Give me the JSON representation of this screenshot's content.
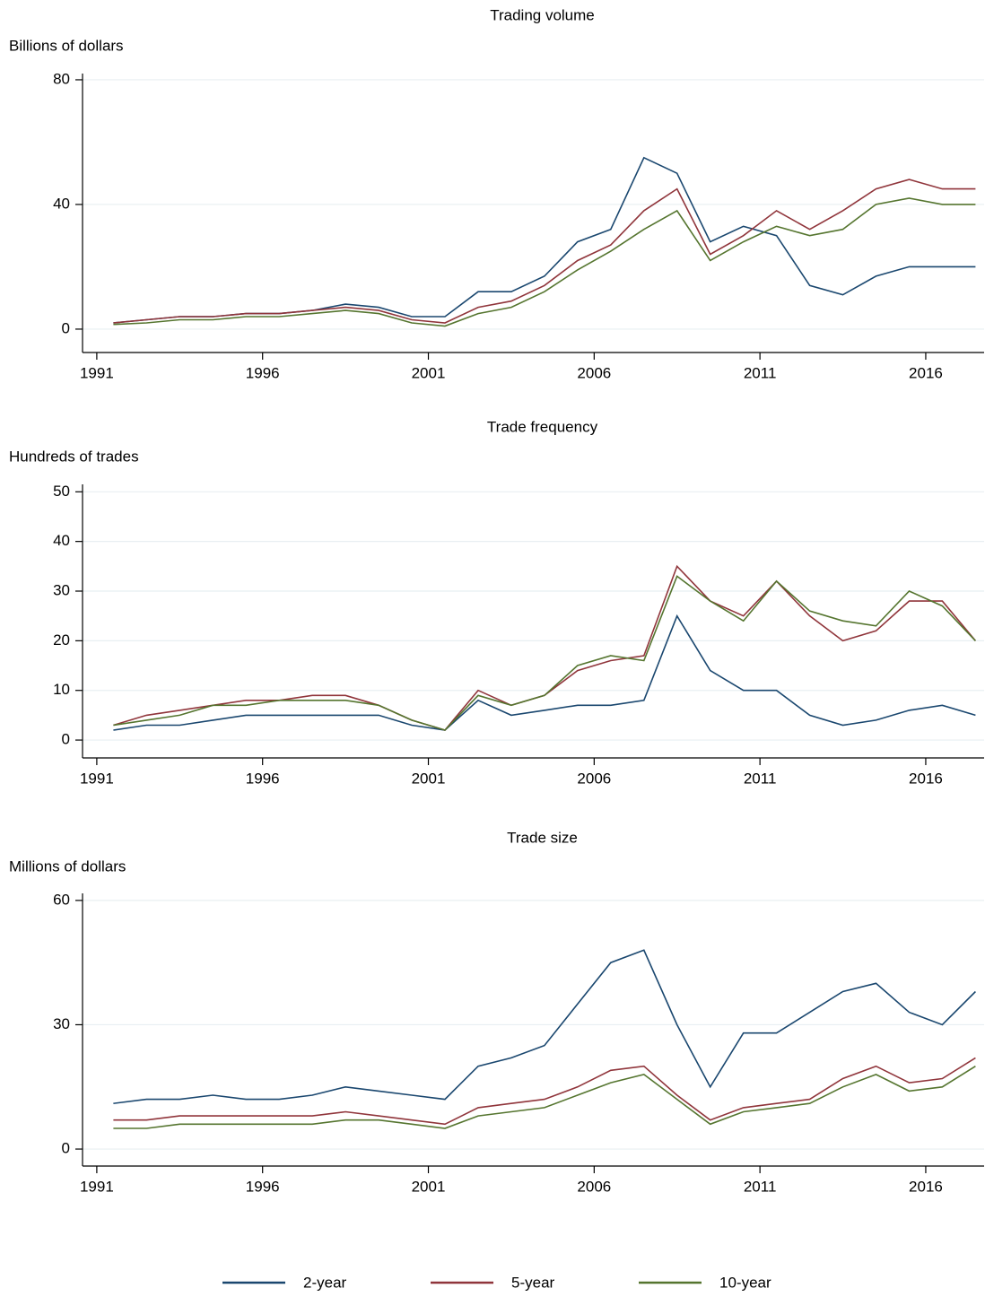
{
  "chart_data": [
    {
      "type": "line",
      "title": "Trading volume",
      "ylabel": "Billions of dollars",
      "x": [
        1991.5,
        1992.5,
        1993.5,
        1994.5,
        1995.5,
        1996.5,
        1997.5,
        1998.5,
        1999.5,
        2000.5,
        2001.5,
        2002.5,
        2003.5,
        2004.5,
        2005.5,
        2006.5,
        2007.5,
        2008.5,
        2009.5,
        2010.5,
        2011.5,
        2012.5,
        2013.5,
        2014.5,
        2015.5,
        2016.5,
        2017.5
      ],
      "xlim": [
        1990.57,
        2017.76
      ],
      "xticks": [
        1991,
        1996,
        2001,
        2006,
        2011,
        2016
      ],
      "ylim": [
        -7.5,
        82
      ],
      "yticks": [
        0,
        40,
        80
      ],
      "grid": true,
      "series": [
        {
          "name": "2-year",
          "color": "#1a476f",
          "values": [
            2,
            3,
            4,
            4,
            5,
            5,
            6,
            8,
            7,
            4,
            4,
            12,
            12,
            17,
            28,
            32,
            55,
            50,
            28,
            33,
            30,
            14,
            11,
            17,
            20,
            20,
            20
          ]
        },
        {
          "name": "5-year",
          "color": "#90353b",
          "values": [
            2,
            3,
            4,
            4,
            5,
            5,
            6,
            7,
            6,
            3,
            2,
            7,
            9,
            14,
            22,
            27,
            38,
            45,
            24,
            30,
            38,
            32,
            38,
            45,
            48,
            45,
            45
          ]
        },
        {
          "name": "10-year",
          "color": "#55752f",
          "values": [
            1.5,
            2,
            3,
            3,
            4,
            4,
            5,
            6,
            5,
            2,
            1,
            5,
            7,
            12,
            19,
            25,
            32,
            38,
            22,
            28,
            33,
            30,
            32,
            40,
            42,
            40,
            40
          ]
        }
      ]
    },
    {
      "type": "line",
      "title": "Trade frequency",
      "ylabel": "Hundreds of trades",
      "x": [
        1991.5,
        1992.5,
        1993.5,
        1994.5,
        1995.5,
        1996.5,
        1997.5,
        1998.5,
        1999.5,
        2000.5,
        2001.5,
        2002.5,
        2003.5,
        2004.5,
        2005.5,
        2006.5,
        2007.5,
        2008.5,
        2009.5,
        2010.5,
        2011.5,
        2012.5,
        2013.5,
        2014.5,
        2015.5,
        2016.5,
        2017.5
      ],
      "xlim": [
        1990.57,
        2017.76
      ],
      "xticks": [
        1991,
        1996,
        2001,
        2006,
        2011,
        2016
      ],
      "ylim": [
        -3.6,
        51.5
      ],
      "yticks": [
        0,
        10,
        20,
        30,
        40,
        50
      ],
      "grid": true,
      "series": [
        {
          "name": "2-year",
          "color": "#1a476f",
          "values": [
            2,
            3,
            3,
            4,
            5,
            5,
            5,
            5,
            5,
            3,
            2,
            8,
            5,
            6,
            7,
            7,
            8,
            25,
            14,
            10,
            10,
            5,
            3,
            4,
            6,
            7,
            5
          ]
        },
        {
          "name": "5-year",
          "color": "#90353b",
          "values": [
            3,
            5,
            6,
            7,
            8,
            8,
            9,
            9,
            7,
            4,
            2,
            10,
            7,
            9,
            14,
            16,
            17,
            35,
            28,
            25,
            32,
            25,
            20,
            22,
            28,
            28,
            20
          ]
        },
        {
          "name": "10-year",
          "color": "#55752f",
          "values": [
            3,
            4,
            5,
            7,
            7,
            8,
            8,
            8,
            7,
            4,
            2,
            9,
            7,
            9,
            15,
            17,
            16,
            33,
            28,
            24,
            32,
            26,
            24,
            23,
            30,
            27,
            20
          ]
        }
      ]
    },
    {
      "type": "line",
      "title": "Trade size",
      "ylabel": "Millions of dollars",
      "x": [
        1991.5,
        1992.5,
        1993.5,
        1994.5,
        1995.5,
        1996.5,
        1997.5,
        1998.5,
        1999.5,
        2000.5,
        2001.5,
        2002.5,
        2003.5,
        2004.5,
        2005.5,
        2006.5,
        2007.5,
        2008.5,
        2009.5,
        2010.5,
        2011.5,
        2012.5,
        2013.5,
        2014.5,
        2015.5,
        2016.5,
        2017.5
      ],
      "xlim": [
        1990.57,
        2017.76
      ],
      "xticks": [
        1991,
        1996,
        2001,
        2006,
        2011,
        2016
      ],
      "ylim": [
        -4.1,
        61.7
      ],
      "yticks": [
        0,
        30,
        60
      ],
      "grid": true,
      "series": [
        {
          "name": "2-year",
          "color": "#1a476f",
          "values": [
            11,
            12,
            12,
            13,
            12,
            12,
            13,
            15,
            14,
            13,
            12,
            20,
            22,
            25,
            35,
            45,
            48,
            30,
            15,
            28,
            28,
            33,
            38,
            40,
            33,
            30,
            38
          ]
        },
        {
          "name": "5-year",
          "color": "#90353b",
          "values": [
            7,
            7,
            8,
            8,
            8,
            8,
            8,
            9,
            8,
            7,
            6,
            10,
            11,
            12,
            15,
            19,
            20,
            13,
            7,
            10,
            11,
            12,
            17,
            20,
            16,
            17,
            22
          ]
        },
        {
          "name": "10-year",
          "color": "#55752f",
          "values": [
            5,
            5,
            6,
            6,
            6,
            6,
            6,
            7,
            7,
            6,
            5,
            8,
            9,
            10,
            13,
            16,
            18,
            12,
            6,
            9,
            10,
            11,
            15,
            18,
            14,
            15,
            20
          ]
        }
      ]
    }
  ]
}
